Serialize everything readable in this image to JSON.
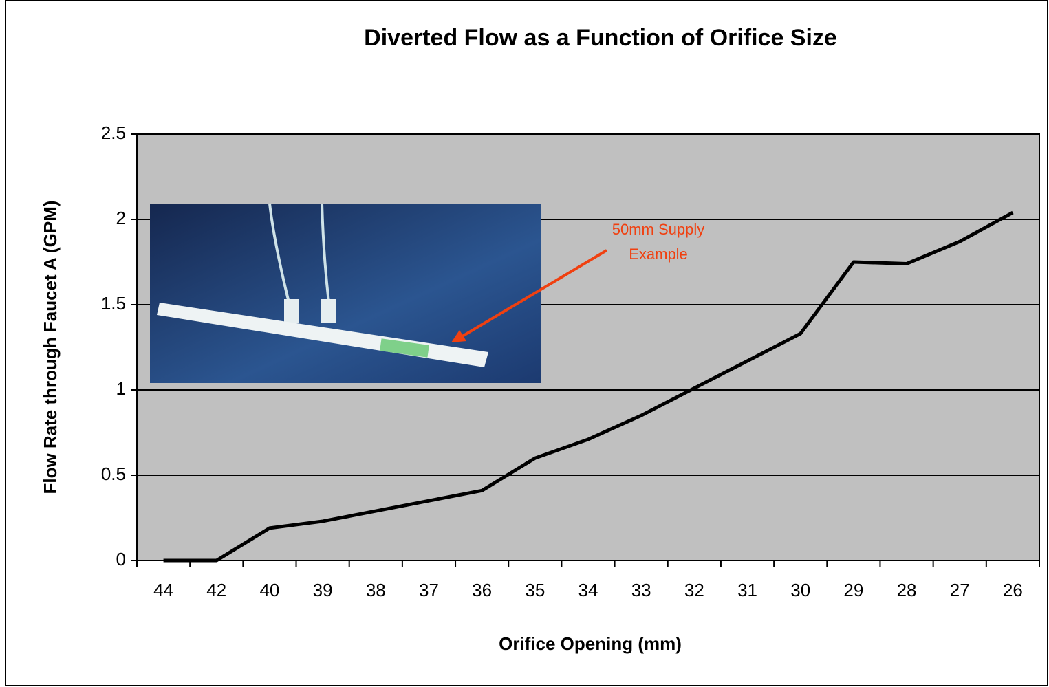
{
  "chart_data": {
    "type": "line",
    "title": "Diverted Flow as a Function of Orifice Size",
    "xlabel": "Orifice Opening (mm)",
    "ylabel": "Flow Rate through Faucet A (GPM)",
    "annotation": [
      "50mm Supply",
      "Example"
    ],
    "categories": [
      "44",
      "42",
      "40",
      "39",
      "38",
      "37",
      "36",
      "35",
      "34",
      "33",
      "32",
      "31",
      "30",
      "29",
      "28",
      "27",
      "26"
    ],
    "values": [
      0,
      0,
      0.19,
      0.23,
      0.29,
      0.35,
      0.41,
      0.6,
      0.71,
      0.85,
      1.01,
      1.17,
      1.33,
      1.75,
      1.74,
      1.87,
      2.04
    ],
    "color": "#000000",
    "ylim": [
      0,
      2.5
    ],
    "yticks": [
      0,
      0.5,
      1,
      1.5,
      2,
      2.5
    ],
    "grid": true
  }
}
